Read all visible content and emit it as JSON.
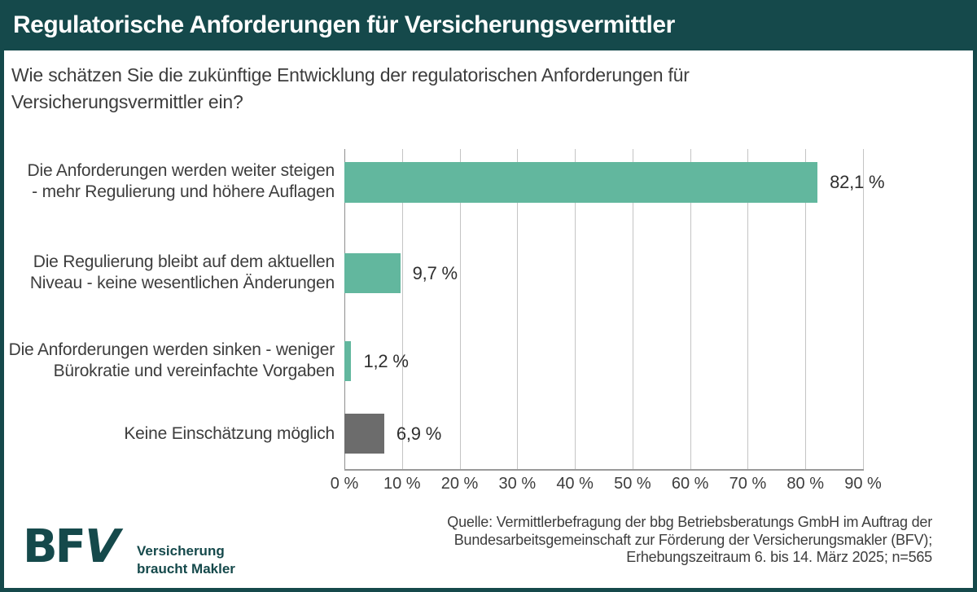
{
  "header": {
    "title": "Regulatorische Anforderungen für Versicherungsvermittler"
  },
  "question": {
    "line1": "Wie schätzen Sie die zukünftige Entwicklung der regulatorischen Anforderungen für",
    "line2": "Versicherungsvermittler ein?"
  },
  "chart_data": {
    "type": "bar",
    "orientation": "horizontal",
    "title": "Wie schätzen Sie die zukünftige Entwicklung der regulatorischen Anforderungen für Versicherungsvermittler ein?",
    "categories": [
      "Die Anforderungen werden weiter steigen - mehr Regulierung und höhere Auflagen",
      "Die Regulierung bleibt auf dem aktuellen Niveau - keine wesentlichen Änderungen",
      "Die Anforderungen werden sinken - weniger Bürokratie und vereinfachte Vorgaben",
      "Keine Einschätzung möglich"
    ],
    "label_lines": [
      [
        "Die Anforderungen werden weiter steigen",
        "- mehr Regulierung und höhere Auflagen"
      ],
      [
        "Die Regulierung bleibt auf dem aktuellen",
        "Niveau - keine wesentlichen Änderungen"
      ],
      [
        "Die Anforderungen werden sinken - weniger",
        "Bürokratie und vereinfachte Vorgaben"
      ],
      [
        "Keine Einschätzung möglich"
      ]
    ],
    "values": [
      82.1,
      9.7,
      1.2,
      6.9
    ],
    "value_labels": [
      "82,1 %",
      "9,7 %",
      "1,2 %",
      "6,9 %"
    ],
    "bar_colors": [
      "#62b79e",
      "#62b79e",
      "#62b79e",
      "#6c6c6c"
    ],
    "xlim": [
      0,
      90
    ],
    "x_ticks": [
      "0 %",
      "10 %",
      "20 %",
      "30 %",
      "40 %",
      "50 %",
      "60 %",
      "70 %",
      "80 %",
      "90 %"
    ],
    "grid": true,
    "legend": false
  },
  "footer": {
    "logo_text_bf": "BF",
    "logo_text_v": "V",
    "tagline_line1": "Versicherung",
    "tagline_line2": "braucht Makler",
    "source_line1": "Quelle: Vermittlerbefragung der bbg Betriebsberatungs GmbH im Auftrag der",
    "source_line2": "Bundesarbeitsgemeinschaft zur Förderung der Versicherungsmakler (BFV);",
    "source_line3": "Erhebungszeitraum 6. bis 14. März 2025; n=565"
  },
  "colors": {
    "frame_teal": "#15494b",
    "bar_green": "#62b79e",
    "bar_gray": "#6c6c6c",
    "gridline": "#c4c4c4",
    "text_dark": "#3d3d3d"
  }
}
